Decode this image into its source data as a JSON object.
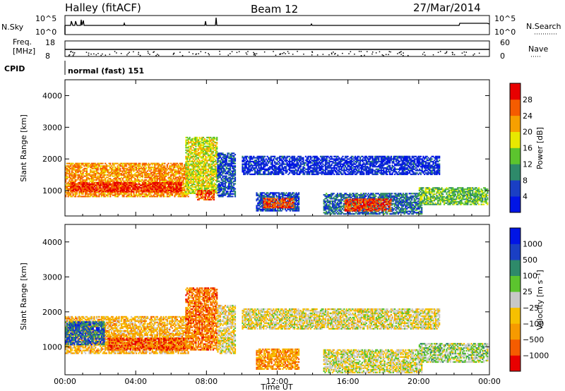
{
  "header": {
    "station": "Halley (fitACF)",
    "beam": "Beam 12",
    "date": "27/Mar/2014"
  },
  "panels": {
    "nsky": {
      "label": "N.Sky",
      "ticks_left": [
        "10^5",
        "10^0"
      ],
      "ticks_right": [
        "10^5",
        "10^0"
      ],
      "right_label": "N.Search"
    },
    "freq": {
      "label_line1": "Freq.",
      "label_line2": "[MHz]",
      "ticks_left": [
        "18",
        "8"
      ],
      "ticks_right": [
        "60",
        "0"
      ],
      "right_label": "Nave"
    },
    "cpid": {
      "label": "CPID",
      "text": "normal (fast) 151"
    }
  },
  "chart_data": [
    {
      "type": "heatmap",
      "name": "power",
      "ylabel": "Slant Range [km]",
      "xlabel": "",
      "ylim": [
        200,
        4500
      ],
      "yticks": [
        "1000",
        "2000",
        "3000",
        "4000"
      ],
      "x_ticks": [
        "00:00",
        "04:00",
        "08:00",
        "12:00",
        "16:00",
        "20:00",
        "00:00"
      ],
      "xlim_hours": [
        0,
        24
      ],
      "colorbar": {
        "label": "Power [dB]",
        "ticks": [
          "28",
          "24",
          "20",
          "16",
          "12",
          "8",
          "4"
        ],
        "colors": [
          "#0015e6",
          "#1a3fc4",
          "#2e8a6a",
          "#5cc42e",
          "#e8e800",
          "#f7a000",
          "#f55c00",
          "#e80000"
        ]
      },
      "regions": [
        {
          "t0": 0.0,
          "t1": 7.0,
          "r0": 800,
          "r1": 1850,
          "level": 0.72
        },
        {
          "t0": 0.3,
          "t1": 6.6,
          "r0": 950,
          "r1": 1250,
          "level": 0.92
        },
        {
          "t0": 6.8,
          "t1": 8.6,
          "r0": 900,
          "r1": 2700,
          "level": 0.55
        },
        {
          "t0": 7.4,
          "t1": 8.4,
          "r0": 700,
          "r1": 1000,
          "level": 0.82
        },
        {
          "t0": 8.6,
          "t1": 9.6,
          "r0": 800,
          "r1": 2200,
          "level": 0.18
        },
        {
          "t0": 10.8,
          "t1": 13.2,
          "r0": 350,
          "r1": 950,
          "level": 0.2
        },
        {
          "t0": 11.2,
          "t1": 12.9,
          "r0": 450,
          "r1": 750,
          "level": 0.85
        },
        {
          "t0": 14.6,
          "t1": 20.2,
          "r0": 250,
          "r1": 900,
          "level": 0.25
        },
        {
          "t0": 15.8,
          "t1": 18.4,
          "r0": 350,
          "r1": 750,
          "level": 0.88
        },
        {
          "t0": 20.0,
          "t1": 23.9,
          "r0": 550,
          "r1": 1100,
          "level": 0.42
        },
        {
          "t0": 10.0,
          "t1": 21.2,
          "r0": 1500,
          "r1": 2100,
          "level": 0.12
        }
      ]
    },
    {
      "type": "heatmap",
      "name": "velocity",
      "ylabel": "Slant Range [km]",
      "xlabel": "Time UT",
      "ylim": [
        200,
        4500
      ],
      "yticks": [
        "1000",
        "2000",
        "3000",
        "4000"
      ],
      "x_ticks": [
        "00:00",
        "04:00",
        "08:00",
        "12:00",
        "16:00",
        "20:00",
        "00:00"
      ],
      "xlim_hours": [
        0,
        24
      ],
      "colorbar": {
        "label": "Velocity [m s⁻¹]",
        "ticks": [
          "1000",
          "500",
          "100",
          "25",
          "−25",
          "−100",
          "−500",
          "−1000"
        ],
        "colors": [
          "#e80000",
          "#f55c00",
          "#f79a00",
          "#f7c000",
          "#c8c8c8",
          "#5cc42e",
          "#2e8a6a",
          "#1a3fc4",
          "#0015e6"
        ]
      },
      "regions": [
        {
          "t0": 0.0,
          "t1": 7.0,
          "r0": 800,
          "r1": 1850,
          "level": 0.35
        },
        {
          "t0": 0.0,
          "t1": 2.2,
          "r0": 1050,
          "r1": 1700,
          "level": 0.78
        },
        {
          "t0": 2.4,
          "t1": 6.8,
          "r0": 900,
          "r1": 1250,
          "level": 0.15
        },
        {
          "t0": 6.8,
          "t1": 8.6,
          "r0": 900,
          "r1": 2700,
          "level": 0.22
        },
        {
          "t0": 8.6,
          "t1": 9.6,
          "r0": 800,
          "r1": 2200,
          "level": 0.45
        },
        {
          "t0": 10.8,
          "t1": 13.2,
          "r0": 350,
          "r1": 950,
          "level": 0.28
        },
        {
          "t0": 14.6,
          "t1": 20.2,
          "r0": 250,
          "r1": 900,
          "level": 0.48
        },
        {
          "t0": 20.0,
          "t1": 23.9,
          "r0": 550,
          "r1": 1100,
          "level": 0.55
        },
        {
          "t0": 10.0,
          "t1": 21.2,
          "r0": 1500,
          "r1": 2100,
          "level": 0.46
        }
      ]
    }
  ]
}
